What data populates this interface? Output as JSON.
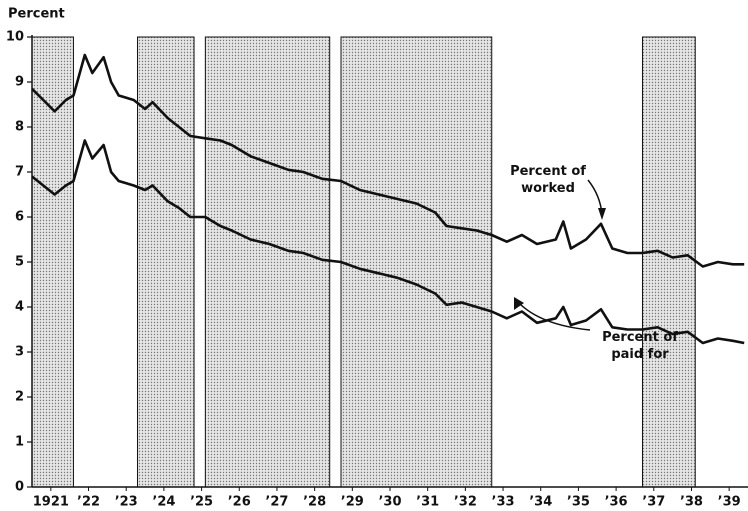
{
  "chart_data": {
    "type": "line",
    "y_label": "Percent",
    "xlim": [
      1921,
      1940
    ],
    "ylim": [
      0,
      10
    ],
    "yticks": [
      0,
      1,
      2,
      3,
      4,
      5,
      6,
      7,
      8,
      9,
      10
    ],
    "xticks": [
      {
        "value": 1921.5,
        "label": "1921"
      },
      {
        "value": 1922.5,
        "label": "’22"
      },
      {
        "value": 1923.5,
        "label": "’23"
      },
      {
        "value": 1924.5,
        "label": "’24"
      },
      {
        "value": 1925.5,
        "label": "’25"
      },
      {
        "value": 1926.5,
        "label": "’26"
      },
      {
        "value": 1927.5,
        "label": "’27"
      },
      {
        "value": 1928.5,
        "label": "’28"
      },
      {
        "value": 1929.5,
        "label": "’29"
      },
      {
        "value": 1930.5,
        "label": "’30"
      },
      {
        "value": 1931.5,
        "label": "’31"
      },
      {
        "value": 1932.5,
        "label": "’32"
      },
      {
        "value": 1933.5,
        "label": "’33"
      },
      {
        "value": 1934.5,
        "label": "’34"
      },
      {
        "value": 1935.5,
        "label": "’35"
      },
      {
        "value": 1936.5,
        "label": "’36"
      },
      {
        "value": 1937.5,
        "label": "’37"
      },
      {
        "value": 1938.5,
        "label": "’38"
      },
      {
        "value": 1939.5,
        "label": "’39"
      }
    ],
    "shaded_periods": [
      [
        1921,
        1922.1
      ],
      [
        1923.8,
        1925.3
      ],
      [
        1925.6,
        1928.9
      ],
      [
        1929.2,
        1933.2
      ],
      [
        1937.2,
        1938.6
      ]
    ],
    "x": [
      1921.0,
      1921.3,
      1921.6,
      1921.9,
      1922.1,
      1922.4,
      1922.6,
      1922.9,
      1923.1,
      1923.3,
      1923.7,
      1924.0,
      1924.2,
      1924.6,
      1924.9,
      1925.2,
      1925.6,
      1926.0,
      1926.3,
      1926.8,
      1927.3,
      1927.8,
      1928.2,
      1928.7,
      1929.2,
      1929.7,
      1930.2,
      1930.7,
      1931.2,
      1931.7,
      1932.0,
      1932.4,
      1932.8,
      1933.2,
      1933.6,
      1934.0,
      1934.4,
      1934.9,
      1935.1,
      1935.3,
      1935.7,
      1936.1,
      1936.4,
      1936.8,
      1937.2,
      1937.6,
      1938.0,
      1938.4,
      1938.8,
      1939.2,
      1939.6,
      1939.9
    ],
    "series": [
      {
        "name": "Percent of worked",
        "color": "#111111",
        "values": [
          8.85,
          8.6,
          8.35,
          8.6,
          8.7,
          9.6,
          9.2,
          9.55,
          9.0,
          8.7,
          8.6,
          8.4,
          8.55,
          8.2,
          8.0,
          7.8,
          7.75,
          7.7,
          7.6,
          7.35,
          7.2,
          7.05,
          7.0,
          6.85,
          6.8,
          6.6,
          6.5,
          6.4,
          6.3,
          6.1,
          5.8,
          5.75,
          5.7,
          5.6,
          5.45,
          5.6,
          5.4,
          5.5,
          5.9,
          5.3,
          5.5,
          5.85,
          5.3,
          5.2,
          5.2,
          5.25,
          5.1,
          5.15,
          4.9,
          5.0,
          4.95,
          4.95
        ]
      },
      {
        "name": "Percent of paid for",
        "color": "#111111",
        "values": [
          6.9,
          6.7,
          6.5,
          6.7,
          6.8,
          7.7,
          7.3,
          7.6,
          7.0,
          6.8,
          6.7,
          6.6,
          6.7,
          6.35,
          6.2,
          6.0,
          6.0,
          5.8,
          5.7,
          5.5,
          5.4,
          5.25,
          5.2,
          5.05,
          5.0,
          4.85,
          4.75,
          4.65,
          4.5,
          4.3,
          4.05,
          4.1,
          4.0,
          3.9,
          3.75,
          3.9,
          3.65,
          3.75,
          4.0,
          3.6,
          3.7,
          3.95,
          3.55,
          3.5,
          3.5,
          3.55,
          3.4,
          3.45,
          3.2,
          3.3,
          3.25,
          3.2
        ]
      }
    ]
  }
}
